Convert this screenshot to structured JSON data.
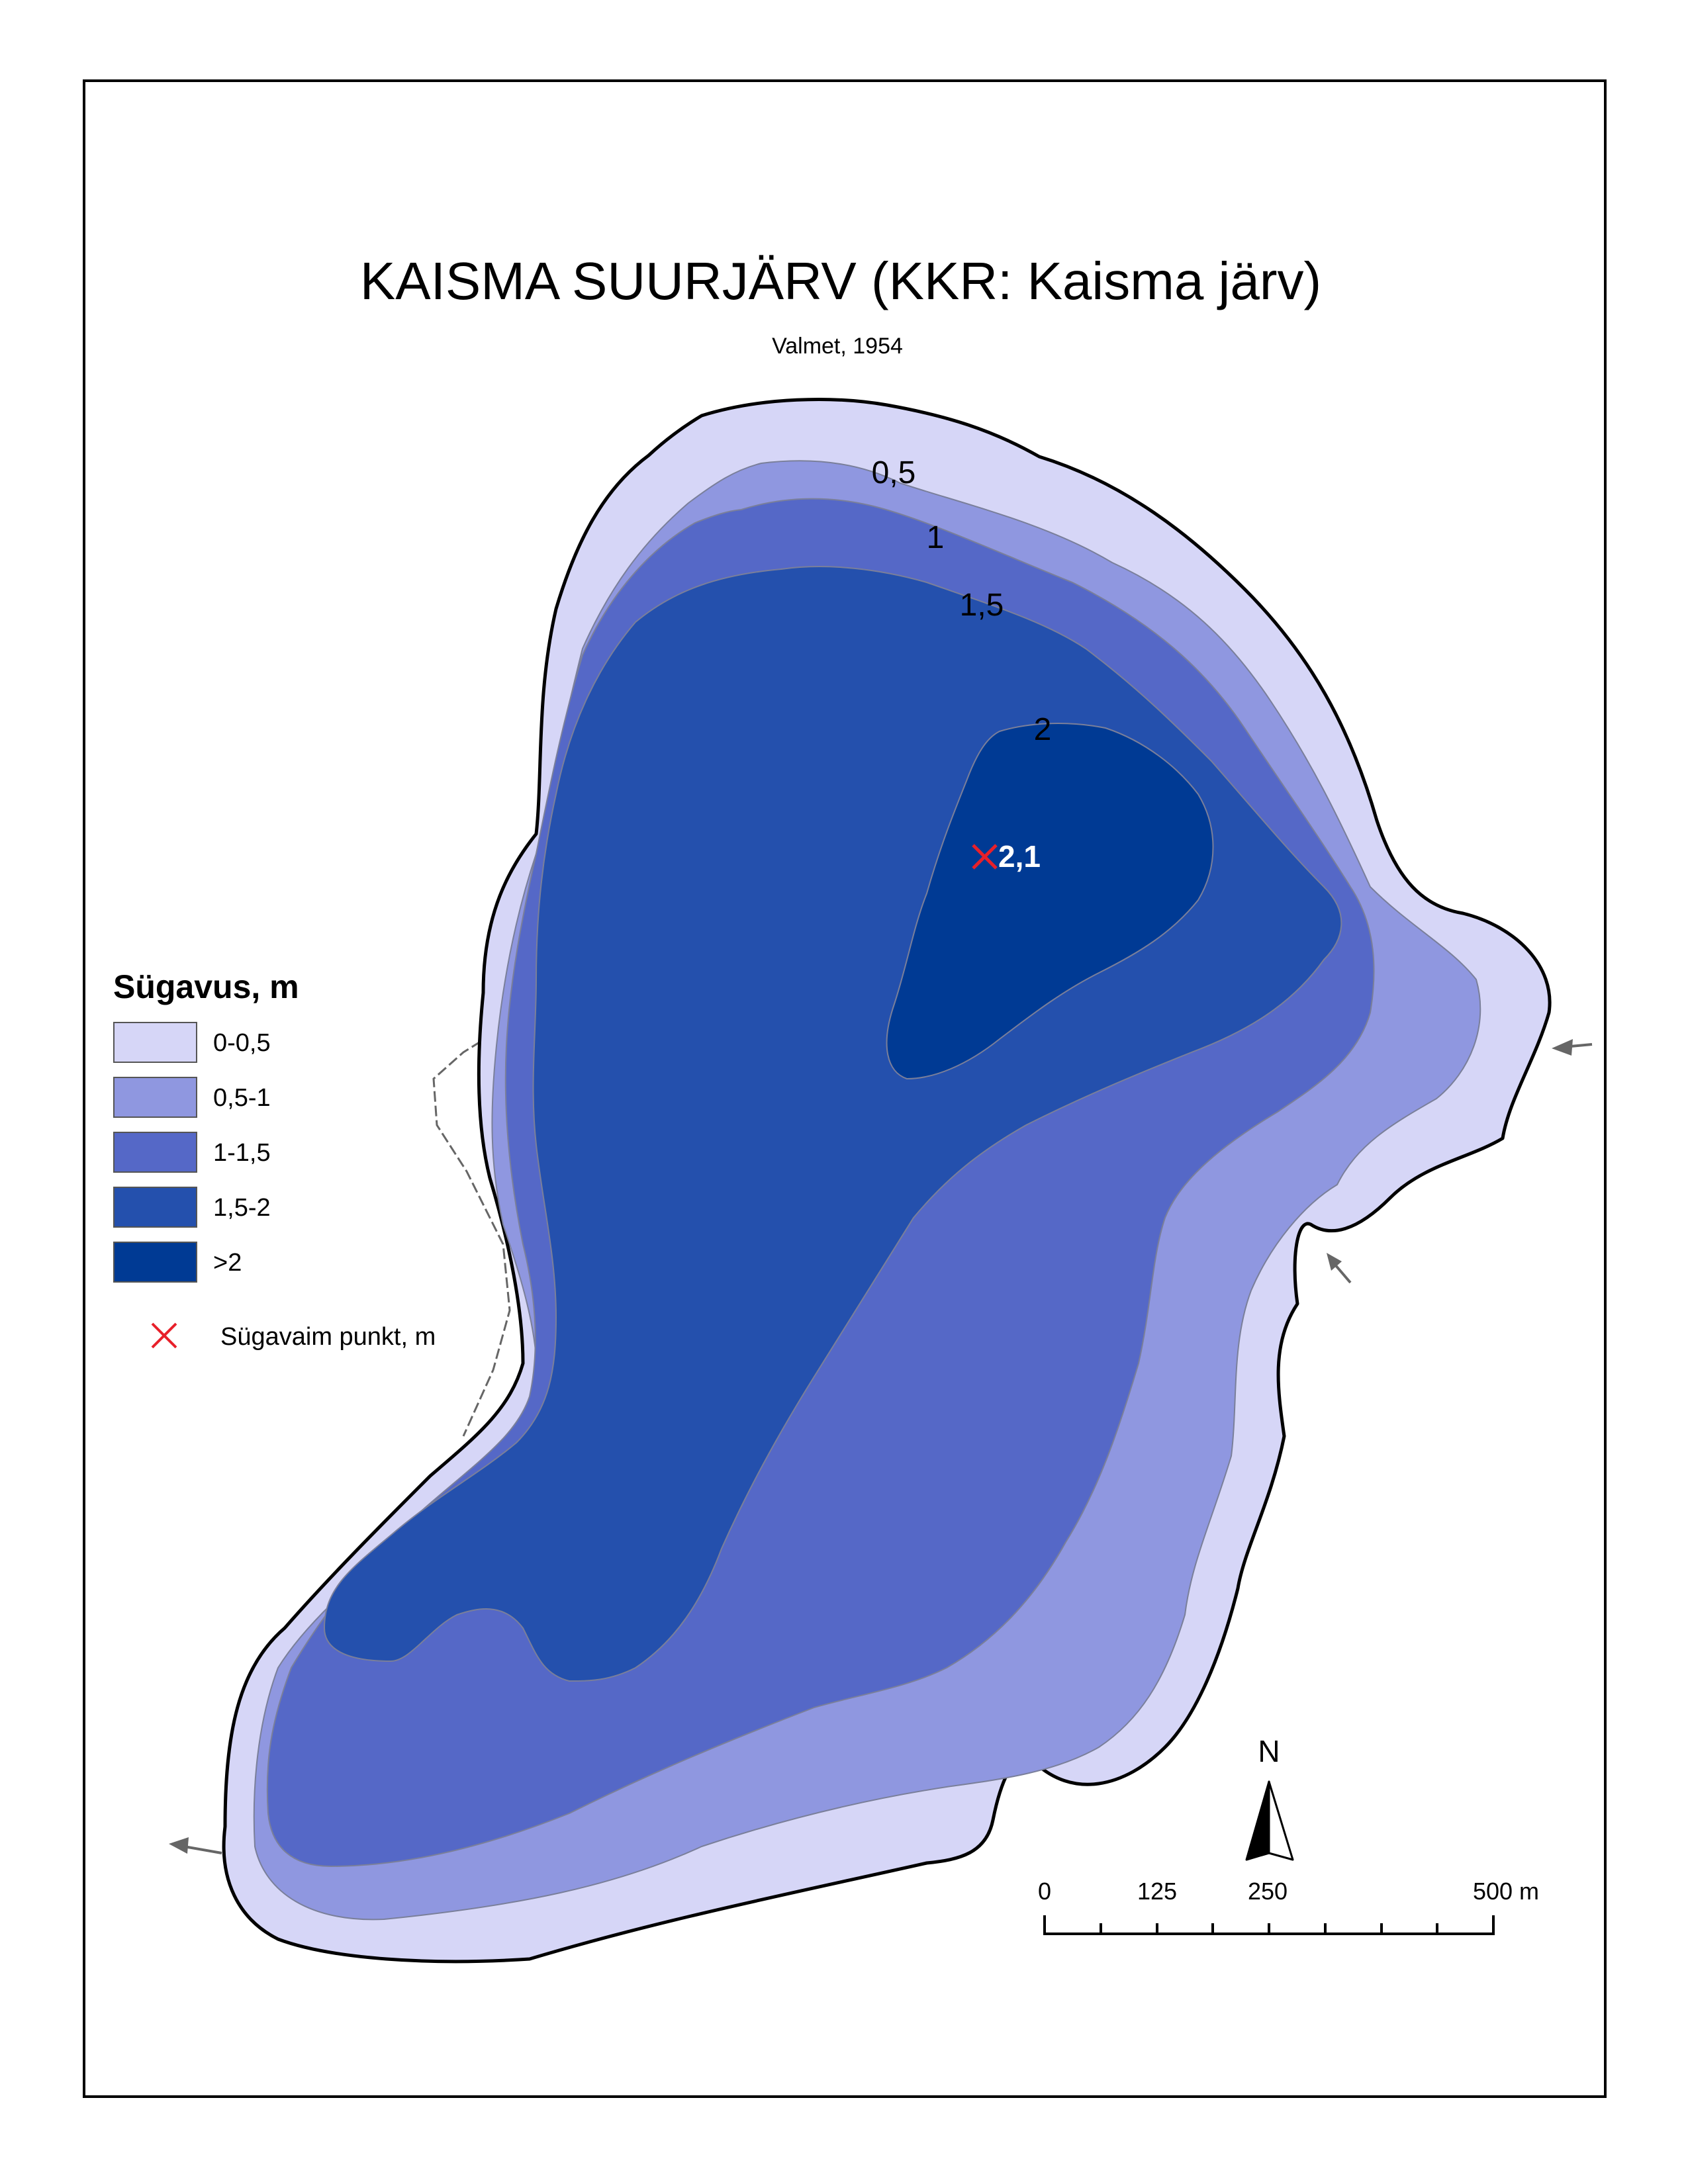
{
  "title": "KAISMA SUURJÄRV (KKR: Kaisma järv)",
  "subtitle": "Valmet, 1954",
  "colors": {
    "zone_0_05": "#d6d6f7",
    "zone_05_1": "#8f97e0",
    "zone_1_15": "#5568c7",
    "zone_15_2": "#2450ad",
    "zone_gt2": "#003a94",
    "deepest_marker": "#e8202a",
    "shoreline": "#000000"
  },
  "contour_labels": [
    "0,5",
    "1",
    "1,5",
    "2"
  ],
  "deepest_point": {
    "value_label": "2,1"
  },
  "legend": {
    "title": "Sügavus, m",
    "items": [
      {
        "label": "0-0,5"
      },
      {
        "label": "0,5-1"
      },
      {
        "label": "1-1,5"
      },
      {
        "label": "1,5-2"
      },
      {
        "label": ">2"
      }
    ],
    "marker_label": "Sügavaim punkt, m"
  },
  "north_arrow": {
    "label": "N"
  },
  "scale_bar": {
    "labels": [
      "0",
      "125",
      "250",
      "500 m"
    ]
  }
}
